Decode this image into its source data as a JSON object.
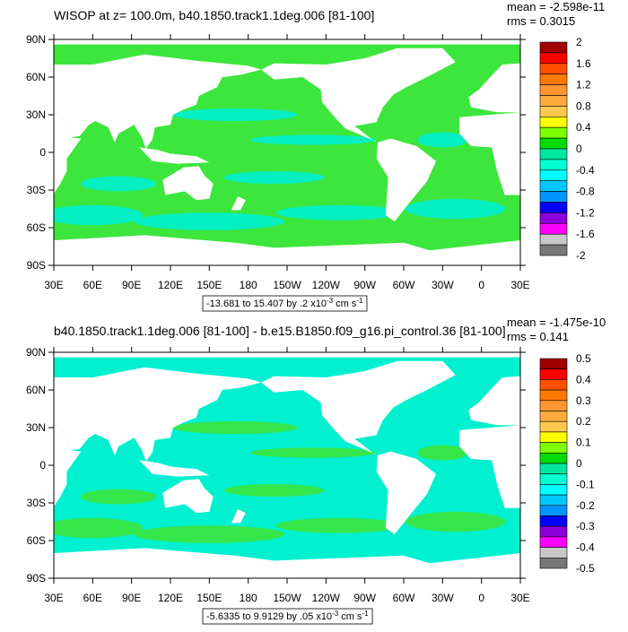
{
  "panels": [
    {
      "title": "WISOP at z= 100.0m, b40.1850.track1.1deg.006 [81-100]",
      "mean": "mean = -2.598e-11",
      "rms": "rms = 0.3015",
      "xlim": [
        30,
        390
      ],
      "ylim": [
        -90,
        90
      ],
      "yticks": [
        {
          "value": 90,
          "label": "90N"
        },
        {
          "value": 60,
          "label": "60N"
        },
        {
          "value": 30,
          "label": "30N"
        },
        {
          "value": 0,
          "label": "0"
        },
        {
          "value": -30,
          "label": "30S"
        },
        {
          "value": -60,
          "label": "60S"
        },
        {
          "value": -90,
          "label": "90S"
        }
      ],
      "xticks": [
        {
          "value": 30,
          "label": "30E"
        },
        {
          "value": 60,
          "label": "60E"
        },
        {
          "value": 90,
          "label": "90E"
        },
        {
          "value": 120,
          "label": "120E"
        },
        {
          "value": 150,
          "label": "150E"
        },
        {
          "value": 180,
          "label": "180"
        },
        {
          "value": 210,
          "label": "150W"
        },
        {
          "value": 240,
          "label": "120W"
        },
        {
          "value": 270,
          "label": "90W"
        },
        {
          "value": 300,
          "label": "60W"
        },
        {
          "value": 330,
          "label": "30W"
        },
        {
          "value": 360,
          "label": "0"
        },
        {
          "value": 390,
          "label": "30E"
        }
      ],
      "info": {
        "text": "-13.681 to 15.407 by .2 x10",
        "exponent": "-3",
        "unit": "cm s",
        "unit_exponent": "-1"
      },
      "colorbar": {
        "ticks": [
          2,
          1.6,
          1.2,
          0.8,
          0.4,
          0,
          -0.4,
          -0.8,
          -1.2,
          -1.6,
          -2
        ],
        "colors": [
          "#a00000",
          "#ff0000",
          "#ff5000",
          "#ff7800",
          "#ff9632",
          "#ffaa3c",
          "#ffc850",
          "#ffff00",
          "#7dff00",
          "#00dc00",
          "#00e6a0",
          "#00ffd2",
          "#00ffff",
          "#00c8ff",
          "#0096ff",
          "#0000ff",
          "#8c00dc",
          "#ff00ff",
          "#c8c8c8",
          "#787878"
        ]
      }
    },
    {
      "title": "b40.1850.track1.1deg.006 [81-100] - b.e15.B1850.f09_g16.pi_control.36 [81-100]",
      "mean": "mean = -1.475e-10",
      "rms": "rms = 0.141",
      "xlim": [
        30,
        390
      ],
      "ylim": [
        -90,
        90
      ],
      "yticks": [
        {
          "value": 90,
          "label": "90N"
        },
        {
          "value": 60,
          "label": "60N"
        },
        {
          "value": 30,
          "label": "30N"
        },
        {
          "value": 0,
          "label": "0"
        },
        {
          "value": -30,
          "label": "30S"
        },
        {
          "value": -60,
          "label": "60S"
        },
        {
          "value": -90,
          "label": "90S"
        }
      ],
      "xticks": [
        {
          "value": 30,
          "label": "30E"
        },
        {
          "value": 60,
          "label": "60E"
        },
        {
          "value": 90,
          "label": "90E"
        },
        {
          "value": 120,
          "label": "120E"
        },
        {
          "value": 150,
          "label": "150E"
        },
        {
          "value": 180,
          "label": "180"
        },
        {
          "value": 210,
          "label": "150W"
        },
        {
          "value": 240,
          "label": "120W"
        },
        {
          "value": 270,
          "label": "90W"
        },
        {
          "value": 300,
          "label": "60W"
        },
        {
          "value": 330,
          "label": "30W"
        },
        {
          "value": 360,
          "label": "0"
        },
        {
          "value": 390,
          "label": "30E"
        }
      ],
      "info": {
        "text": "-5.6335 to 9.9129 by .05 x10",
        "exponent": "-3",
        "unit": "cm s",
        "unit_exponent": "-1"
      },
      "colorbar": {
        "ticks": [
          0.5,
          0.4,
          0.3,
          0.2,
          0.1,
          0,
          -0.1,
          -0.2,
          -0.3,
          -0.4,
          -0.5
        ],
        "colors": [
          "#a00000",
          "#ff0000",
          "#ff5000",
          "#ff7800",
          "#ff9632",
          "#ffaa3c",
          "#ffc850",
          "#ffff00",
          "#7dff00",
          "#00dc00",
          "#00e6a0",
          "#00ffd2",
          "#00ffff",
          "#00c8ff",
          "#0096ff",
          "#0000ff",
          "#8c00dc",
          "#ff00ff",
          "#c8c8c8",
          "#787878"
        ]
      }
    }
  ]
}
